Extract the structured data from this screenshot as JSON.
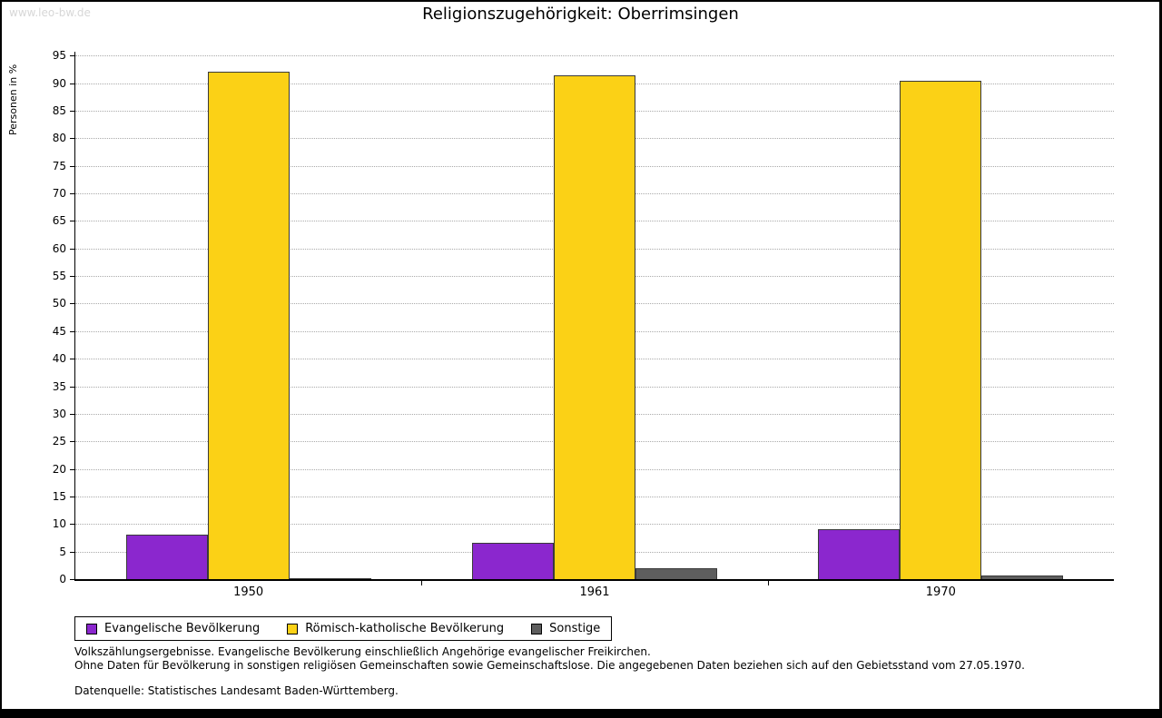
{
  "watermark": "www.leo-bw.de",
  "title": "Religionszugehörigkeit: Oberrimsingen",
  "chart_data": {
    "type": "bar",
    "title": "Religionszugehörigkeit: Oberrimsingen",
    "xlabel": "",
    "ylabel": "Personen in %",
    "categories": [
      "1950",
      "1961",
      "1970"
    ],
    "series": [
      {
        "name": "Evangelische Bevölkerung",
        "color": "#8b27ce",
        "values": [
          8.0,
          6.6,
          9.0
        ]
      },
      {
        "name": "Römisch-katholische Bevölkerung",
        "color": "#fbd116",
        "values": [
          92.0,
          91.5,
          90.5
        ]
      },
      {
        "name": "Sonstige",
        "color": "#5e5e5e",
        "values": [
          0.2,
          2.0,
          0.7
        ]
      }
    ],
    "ylim": [
      0,
      95
    ],
    "ytick_step": 5,
    "grid": true,
    "legend_position": "bottom-left"
  },
  "notes": {
    "line1": "Volkszählungsergebnisse. Evangelische Bevölkerung einschließlich Angehörige evangelischer Freikirchen.",
    "line2": "Ohne Daten für Bevölkerung in sonstigen religiösen Gemeinschaften sowie Gemeinschaftslose. Die angegebenen Daten beziehen sich auf den Gebietsstand vom 27.05.1970.",
    "source": "Datenquelle: Statistisches Landesamt Baden-Württemberg."
  }
}
